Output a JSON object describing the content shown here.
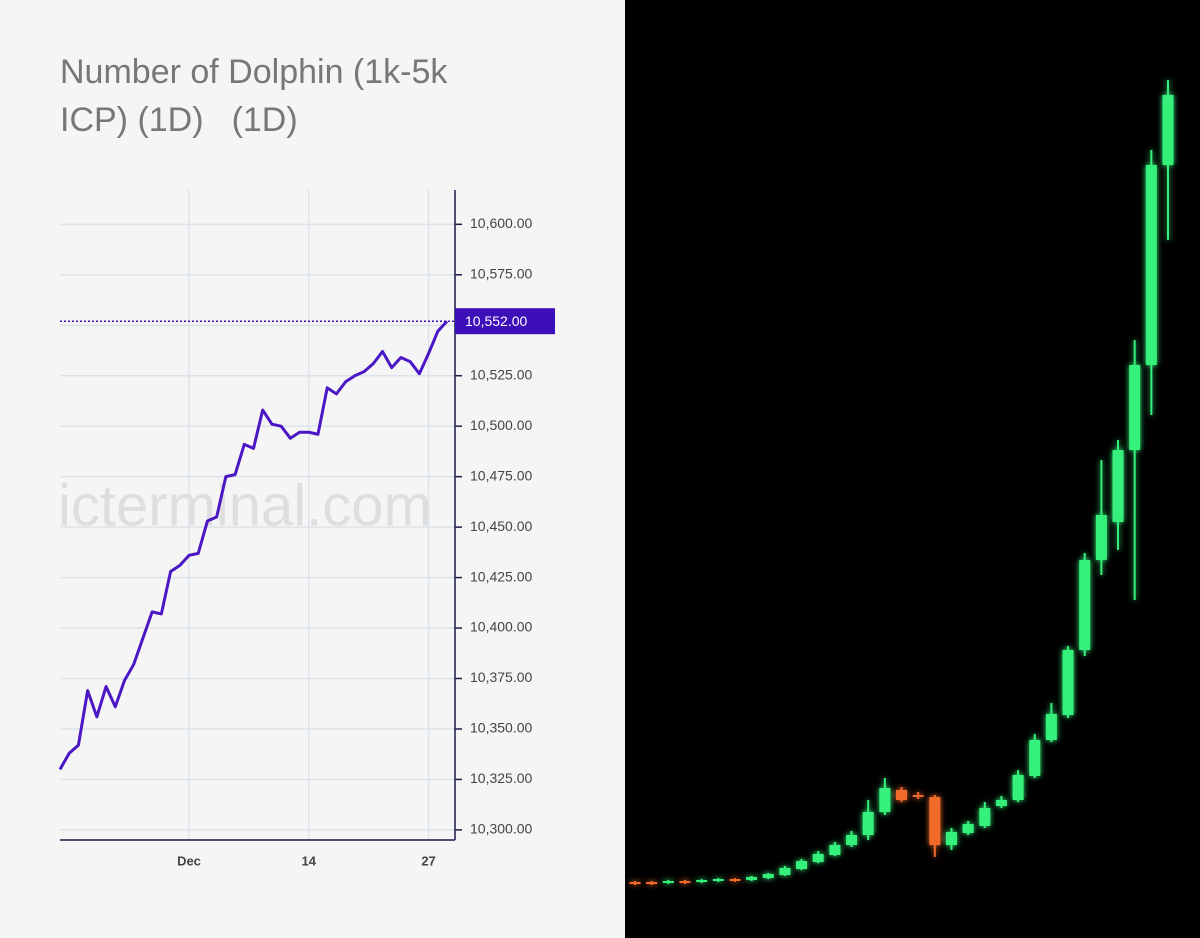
{
  "chart_data": [
    {
      "type": "line",
      "title": "Number of Dolphin (1k-5k ICP) (1D)",
      "subtitle": "(1D)",
      "watermark": "icterminal.com",
      "categories": [
        null,
        null,
        null,
        null,
        null,
        null,
        null,
        null,
        null,
        null,
        null,
        null,
        null,
        null,
        "Dec",
        null,
        null,
        null,
        null,
        null,
        null,
        null,
        null,
        null,
        null,
        null,
        null,
        "14",
        null,
        null,
        null,
        null,
        null,
        null,
        null,
        null,
        null,
        null,
        null,
        null,
        "27",
        null,
        null
      ],
      "series": [
        {
          "name": "Number of Dolphin",
          "color": "#4b17c4",
          "values": [
            10330,
            10338,
            10342,
            10369,
            10356,
            10371,
            10361,
            10374,
            10382,
            10395,
            10408,
            10407,
            10428,
            10431,
            10436,
            10437,
            10453,
            10455,
            10475,
            10476,
            10491,
            10489,
            10508,
            10501,
            10500,
            10494,
            10497,
            10497,
            10496,
            10519,
            10516,
            10522,
            10525,
            10527,
            10531,
            10537,
            10529,
            10534,
            10532,
            10526,
            10536,
            10547,
            10552
          ]
        }
      ],
      "last_value": {
        "value": 10552,
        "label": "10,552.00"
      },
      "ylim": [
        10295,
        10617
      ],
      "yticks": [
        {
          "value": 10300,
          "label": "10,300.00"
        },
        {
          "value": 10325,
          "label": "10,325.00"
        },
        {
          "value": 10350,
          "label": "10,350.00"
        },
        {
          "value": 10375,
          "label": "10,375.00"
        },
        {
          "value": 10400,
          "label": "10,400.00"
        },
        {
          "value": 10425,
          "label": "10,425.00"
        },
        {
          "value": 10450,
          "label": "10,450.00"
        },
        {
          "value": 10475,
          "label": "10,475.00"
        },
        {
          "value": 10500,
          "label": "10,500.00"
        },
        {
          "value": 10525,
          "label": "10,525.00"
        },
        {
          "value": 10550,
          "label": "10,550.00"
        },
        {
          "value": 10575,
          "label": "10,575.00"
        },
        {
          "value": 10600,
          "label": "10,600.00"
        }
      ],
      "grid": true
    },
    {
      "type": "candlestick",
      "up_color": "#34f07a",
      "down_color": "#f06a2a",
      "open": [
        56,
        56,
        55,
        57,
        56,
        57,
        59,
        58,
        60,
        63,
        69,
        76,
        83,
        93,
        103,
        126,
        148,
        143,
        141,
        93,
        105,
        112,
        132,
        138,
        162,
        198,
        223,
        288,
        378,
        416,
        488,
        573,
        773
      ],
      "high": [
        57,
        57,
        58,
        58,
        59,
        60,
        60,
        62,
        65,
        72,
        79,
        87,
        96,
        107,
        138,
        160,
        151,
        146,
        143,
        110,
        117,
        136,
        142,
        168,
        204,
        235,
        292,
        385,
        478,
        498,
        598,
        788,
        858
      ],
      "low": [
        53,
        53,
        54,
        54,
        55,
        56,
        56,
        57,
        59,
        62,
        68,
        75,
        82,
        91,
        98,
        123,
        136,
        139,
        81,
        88,
        103,
        110,
        130,
        136,
        160,
        196,
        220,
        282,
        363,
        388,
        338,
        523,
        698
      ],
      "close": [
        54,
        54,
        57,
        55,
        58,
        59,
        57,
        61,
        64,
        70,
        77,
        84,
        93,
        103,
        126,
        150,
        138,
        141,
        93,
        106,
        114,
        130,
        138,
        163,
        198,
        224,
        288,
        378,
        423,
        488,
        573,
        773,
        843
      ]
    }
  ]
}
